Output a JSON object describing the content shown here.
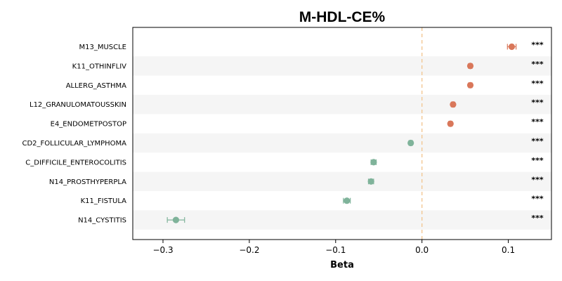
{
  "chart_data": {
    "type": "forest",
    "title": "M-HDL-CE%",
    "xlabel": "Beta",
    "xlim": [
      -0.335,
      0.15
    ],
    "xticks": [
      -0.3,
      -0.2,
      -0.1,
      0.0,
      0.1
    ],
    "xtick_labels": [
      "−0.3",
      "−0.2",
      "−0.1",
      "0.0",
      "0.1"
    ],
    "reference_line": 0.0,
    "positive_color": "#d9775a",
    "negative_color": "#7fb39a",
    "reference_color": "#f2c48d",
    "stripe_color": "#f5f5f5",
    "grid": false,
    "categories": [
      "M13_MUSCLE",
      "K11_OTHINFLIV",
      "ALLERG_ASTHMA",
      "L12_GRANULOMATOUSSKIN",
      "E4_ENDOMETPOSTOP",
      "CD2_FOLLICULAR_LYMPHOMA",
      "C_DIFFICILE_ENTEROCOLITIS",
      "N14_PROSTHYPERPLA",
      "K11_FISTULA",
      "N14_CYSTITIS"
    ],
    "beta": [
      0.104,
      0.056,
      0.056,
      0.036,
      0.033,
      -0.013,
      -0.056,
      -0.059,
      -0.087,
      -0.285
    ],
    "ci_low": [
      0.099,
      0.054,
      0.054,
      0.034,
      0.031,
      -0.015,
      -0.059,
      -0.062,
      -0.091,
      -0.295
    ],
    "ci_high": [
      0.109,
      0.058,
      0.058,
      0.038,
      0.035,
      -0.011,
      -0.053,
      -0.056,
      -0.083,
      -0.275
    ],
    "significance": [
      "***",
      "***",
      "***",
      "***",
      "***",
      "***",
      "***",
      "***",
      "***",
      "***"
    ]
  }
}
